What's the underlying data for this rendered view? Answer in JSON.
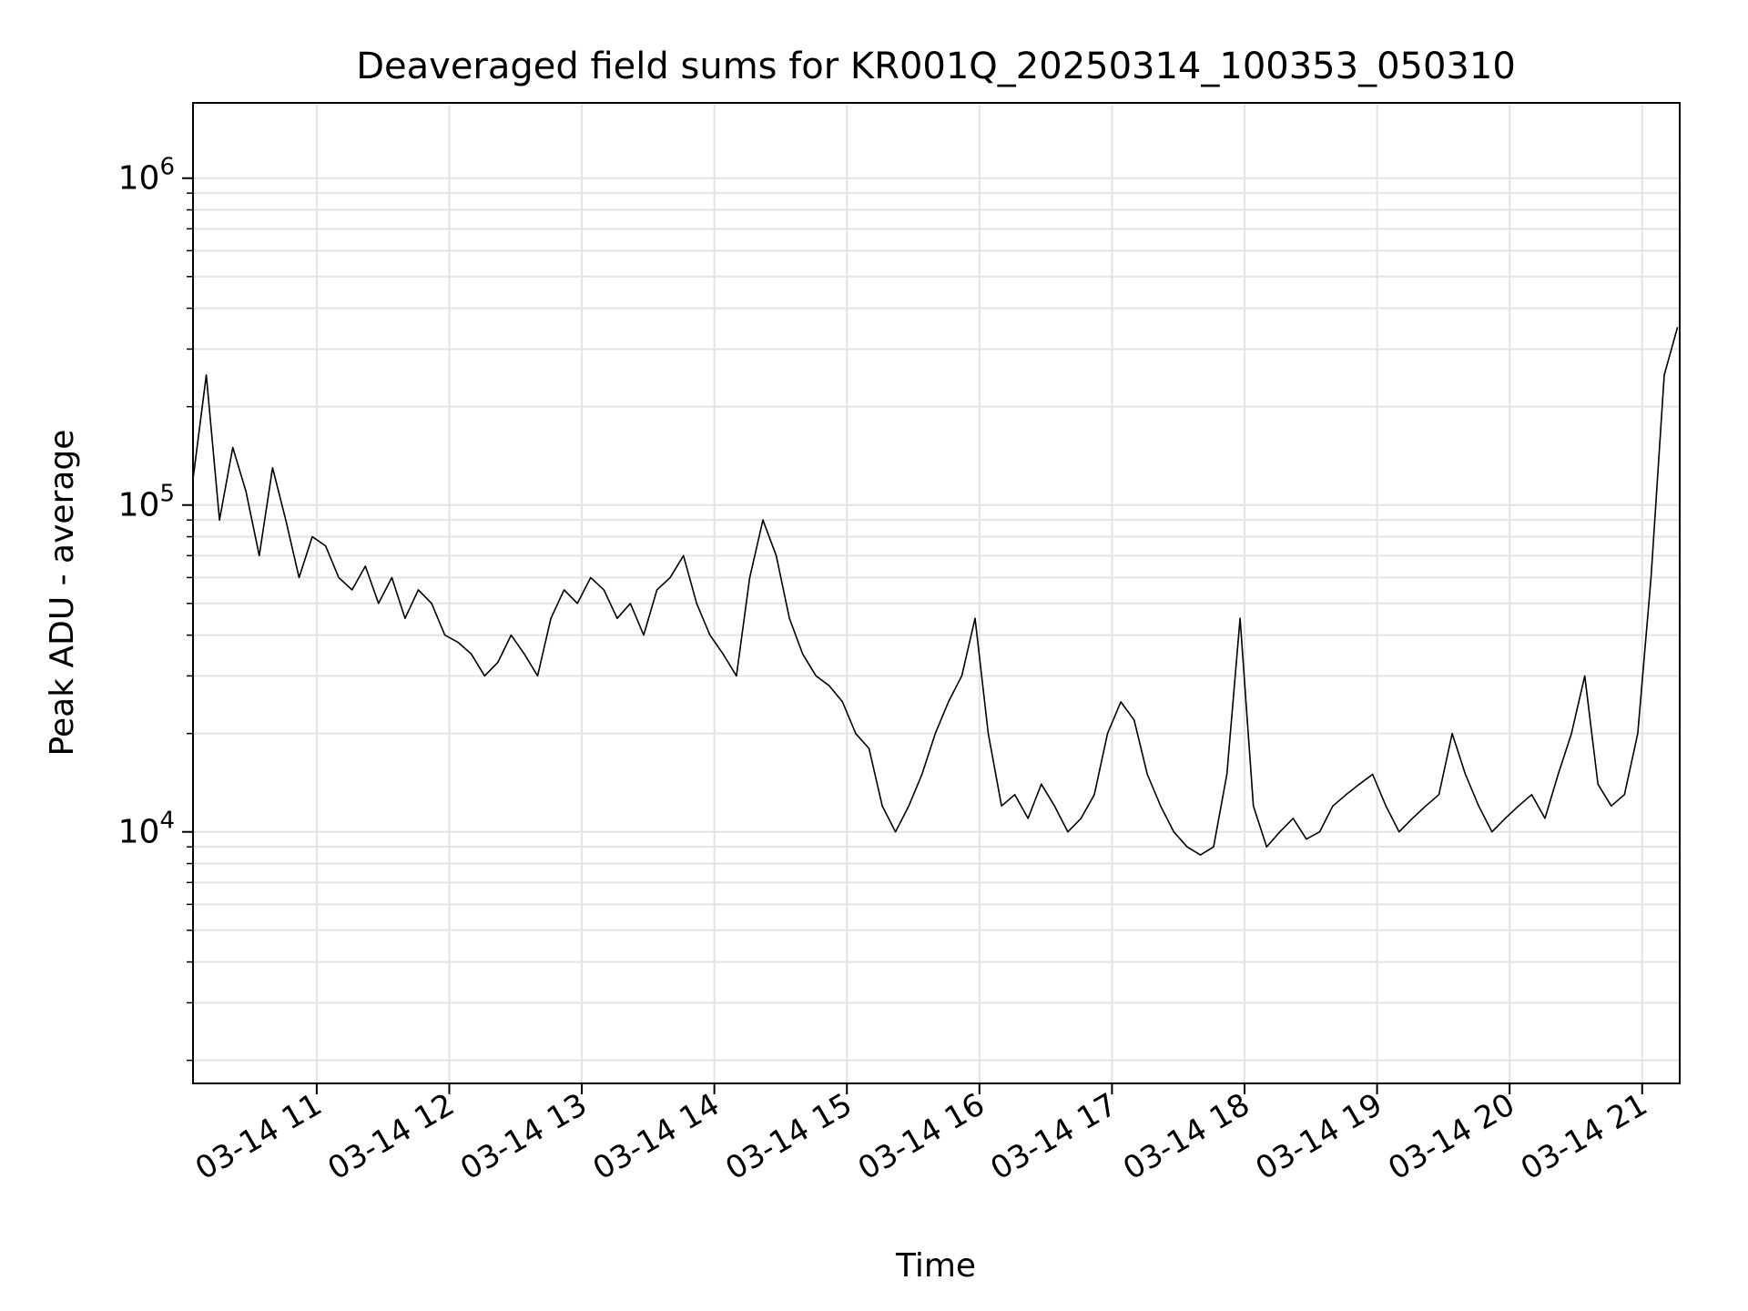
{
  "chart_data": {
    "type": "line",
    "title": "Deaveraged field sums for KR001Q_20250314_100353_050310",
    "xlabel": "Time",
    "ylabel": "Peak ADU - average",
    "yscale": "log",
    "grid": true,
    "xlim": [
      "2025-03-14 10:04",
      "2025-03-14 21:17"
    ],
    "ylim": [
      1700,
      1700000
    ],
    "xticks": [
      {
        "t": "2025-03-14 11:00",
        "label": "03-14 11"
      },
      {
        "t": "2025-03-14 12:00",
        "label": "03-14 12"
      },
      {
        "t": "2025-03-14 13:00",
        "label": "03-14 13"
      },
      {
        "t": "2025-03-14 14:00",
        "label": "03-14 14"
      },
      {
        "t": "2025-03-14 15:00",
        "label": "03-14 15"
      },
      {
        "t": "2025-03-14 16:00",
        "label": "03-14 16"
      },
      {
        "t": "2025-03-14 17:00",
        "label": "03-14 17"
      },
      {
        "t": "2025-03-14 18:00",
        "label": "03-14 18"
      },
      {
        "t": "2025-03-14 19:00",
        "label": "03-14 19"
      },
      {
        "t": "2025-03-14 20:00",
        "label": "03-14 20"
      },
      {
        "t": "2025-03-14 21:00",
        "label": "03-14 21"
      }
    ],
    "yticks": [
      {
        "value": 10000,
        "base": "10",
        "exp": "4"
      },
      {
        "value": 100000,
        "base": "10",
        "exp": "5"
      },
      {
        "value": 1000000,
        "base": "10",
        "exp": "6"
      }
    ],
    "line_color": "#000000",
    "series": [
      {
        "x": [
          "2025-03-14 10:04",
          "2025-03-14 10:10",
          "2025-03-14 10:16",
          "2025-03-14 10:22",
          "2025-03-14 10:28",
          "2025-03-14 10:34",
          "2025-03-14 10:40",
          "2025-03-14 10:46",
          "2025-03-14 10:52",
          "2025-03-14 10:58",
          "2025-03-14 11:04",
          "2025-03-14 11:10",
          "2025-03-14 11:16",
          "2025-03-14 11:22",
          "2025-03-14 11:28",
          "2025-03-14 11:34",
          "2025-03-14 11:40",
          "2025-03-14 11:46",
          "2025-03-14 11:52",
          "2025-03-14 11:58",
          "2025-03-14 12:04",
          "2025-03-14 12:10",
          "2025-03-14 12:16",
          "2025-03-14 12:22",
          "2025-03-14 12:28",
          "2025-03-14 12:34",
          "2025-03-14 12:40",
          "2025-03-14 12:46",
          "2025-03-14 12:52",
          "2025-03-14 12:58",
          "2025-03-14 13:04",
          "2025-03-14 13:10",
          "2025-03-14 13:16",
          "2025-03-14 13:22",
          "2025-03-14 13:28",
          "2025-03-14 13:34",
          "2025-03-14 13:40",
          "2025-03-14 13:46",
          "2025-03-14 13:52",
          "2025-03-14 13:58",
          "2025-03-14 14:04",
          "2025-03-14 14:10",
          "2025-03-14 14:16",
          "2025-03-14 14:22",
          "2025-03-14 14:28",
          "2025-03-14 14:34",
          "2025-03-14 14:40",
          "2025-03-14 14:46",
          "2025-03-14 14:52",
          "2025-03-14 14:58",
          "2025-03-14 15:04",
          "2025-03-14 15:10",
          "2025-03-14 15:16",
          "2025-03-14 15:22",
          "2025-03-14 15:28",
          "2025-03-14 15:34",
          "2025-03-14 15:40",
          "2025-03-14 15:46",
          "2025-03-14 15:52",
          "2025-03-14 15:58",
          "2025-03-14 16:04",
          "2025-03-14 16:10",
          "2025-03-14 16:16",
          "2025-03-14 16:22",
          "2025-03-14 16:28",
          "2025-03-14 16:34",
          "2025-03-14 16:40",
          "2025-03-14 16:46",
          "2025-03-14 16:52",
          "2025-03-14 16:58",
          "2025-03-14 17:04",
          "2025-03-14 17:10",
          "2025-03-14 17:16",
          "2025-03-14 17:22",
          "2025-03-14 17:28",
          "2025-03-14 17:34",
          "2025-03-14 17:40",
          "2025-03-14 17:46",
          "2025-03-14 17:52",
          "2025-03-14 17:58",
          "2025-03-14 18:04",
          "2025-03-14 18:10",
          "2025-03-14 18:16",
          "2025-03-14 18:22",
          "2025-03-14 18:28",
          "2025-03-14 18:34",
          "2025-03-14 18:40",
          "2025-03-14 18:46",
          "2025-03-14 18:52",
          "2025-03-14 18:58",
          "2025-03-14 19:04",
          "2025-03-14 19:10",
          "2025-03-14 19:16",
          "2025-03-14 19:22",
          "2025-03-14 19:28",
          "2025-03-14 19:34",
          "2025-03-14 19:40",
          "2025-03-14 19:46",
          "2025-03-14 19:52",
          "2025-03-14 19:58",
          "2025-03-14 20:04",
          "2025-03-14 20:10",
          "2025-03-14 20:16",
          "2025-03-14 20:22",
          "2025-03-14 20:28",
          "2025-03-14 20:34",
          "2025-03-14 20:40",
          "2025-03-14 20:46",
          "2025-03-14 20:52",
          "2025-03-14 20:58",
          "2025-03-14 21:04",
          "2025-03-14 21:10",
          "2025-03-14 21:16"
        ],
        "y": [
          120000,
          250000,
          90000,
          150000,
          110000,
          70000,
          130000,
          90000,
          60000,
          80000,
          75000,
          60000,
          55000,
          65000,
          50000,
          60000,
          45000,
          55000,
          50000,
          40000,
          38000,
          35000,
          30000,
          33000,
          40000,
          35000,
          30000,
          45000,
          55000,
          50000,
          60000,
          55000,
          45000,
          50000,
          40000,
          55000,
          60000,
          70000,
          50000,
          40000,
          35000,
          30000,
          60000,
          90000,
          70000,
          45000,
          35000,
          30000,
          28000,
          25000,
          20000,
          18000,
          12000,
          10000,
          12000,
          15000,
          20000,
          25000,
          30000,
          45000,
          20000,
          12000,
          13000,
          11000,
          14000,
          12000,
          10000,
          11000,
          13000,
          20000,
          25000,
          22000,
          15000,
          12000,
          10000,
          9000,
          8500,
          9000,
          15000,
          45000,
          12000,
          9000,
          10000,
          11000,
          9500,
          10000,
          12000,
          13000,
          14000,
          15000,
          12000,
          10000,
          11000,
          12000,
          13000,
          20000,
          15000,
          12000,
          10000,
          11000,
          12000,
          13000,
          11000,
          15000,
          20000,
          30000,
          14000,
          12000,
          13000,
          20000,
          60000,
          250000,
          350000
        ]
      }
    ]
  }
}
